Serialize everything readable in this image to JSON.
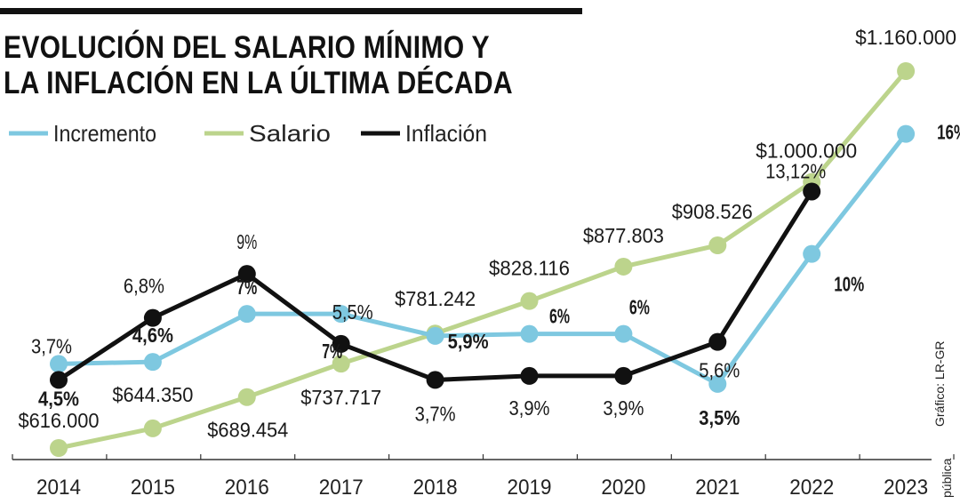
{
  "title_line1": "EVOLUCIÓN DEL SALARIO MÍNIMO Y",
  "title_line2": "LA INFLACIÓN EN LA ÚLTIMA DÉCADA",
  "credit": "Gráfico: LR-GR",
  "credit_cut": "pública",
  "chart_data": {
    "type": "line",
    "categories": [
      "2014",
      "2015",
      "2016",
      "2017",
      "2018",
      "2019",
      "2020",
      "2021",
      "2022",
      "2023"
    ],
    "legend": "top-left",
    "grid": false,
    "series": [
      {
        "name": "Incremento",
        "color": "#7ec8e0",
        "values": [
          4.5,
          4.6,
          7,
          7,
          5.9,
          6,
          6,
          3.5,
          10,
          16
        ],
        "labels": [
          "4,5%",
          "4,6%",
          "7%",
          "7%",
          "5,9%",
          "6%",
          "6%",
          "3,5%",
          "10%",
          "16%"
        ]
      },
      {
        "name": "Salario",
        "color": "#bcd48c",
        "values": [
          616000,
          644350,
          689454,
          737717,
          781242,
          828116,
          877803,
          908526,
          1000000,
          1160000
        ],
        "labels": [
          "$616.000",
          "$644.350",
          "$689.454",
          "$737.717",
          "$781.242",
          "$828.116",
          "$877.803",
          "$908.526",
          "$1.000.000",
          "$1.160.000"
        ]
      },
      {
        "name": "Inflación",
        "color": "#111111",
        "values": [
          3.7,
          6.8,
          9,
          5.5,
          3.7,
          3.9,
          3.9,
          5.6,
          13.12,
          null
        ],
        "labels": [
          "3,7%",
          "6,8%",
          "9%",
          "5,5%",
          "3,7%",
          "3,9%",
          "3,9%",
          "5,6%",
          "13,12%",
          ""
        ]
      }
    ]
  }
}
